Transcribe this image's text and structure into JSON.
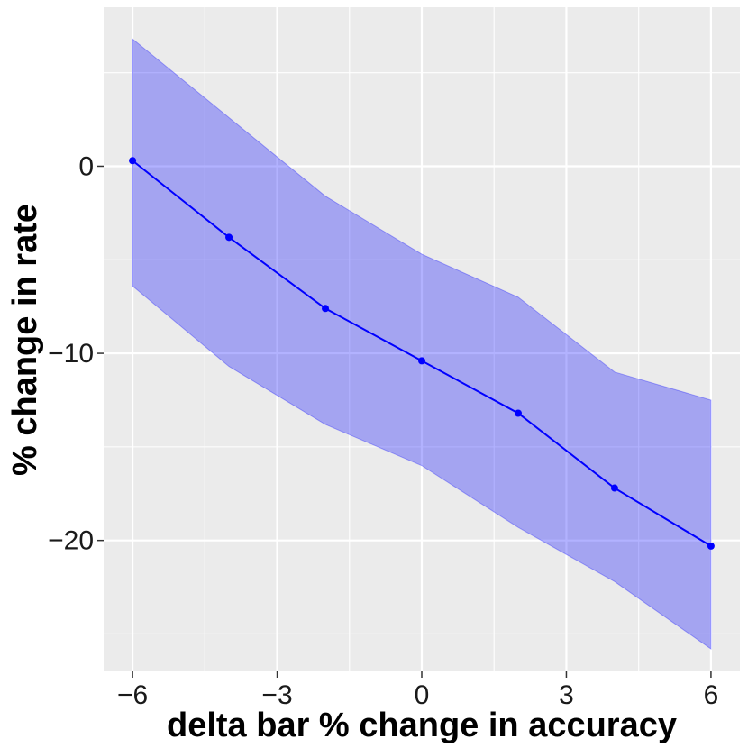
{
  "chart_data": {
    "type": "line",
    "title": "",
    "xlabel": "delta bar % change in accuracy",
    "ylabel": "% change in rate",
    "xlim": [
      -6.6,
      6.6
    ],
    "ylim": [
      -27.0,
      8.5
    ],
    "x_ticks": [
      -6,
      -3,
      0,
      3,
      6
    ],
    "x_tick_labels": [
      "−6",
      "−3",
      "0",
      "3",
      "6"
    ],
    "y_ticks": [
      0,
      -10,
      -20
    ],
    "y_tick_labels": [
      "0",
      "−10",
      "−20"
    ],
    "x_minor_ticks": [
      -4.5,
      -1.5,
      1.5,
      4.5
    ],
    "y_minor_ticks": [
      5,
      -5,
      -15,
      -25
    ],
    "grid": true,
    "legend": "none",
    "series": [
      {
        "x": [
          -6,
          -4,
          -2,
          0,
          2,
          4,
          6
        ],
        "y": [
          0.3,
          -3.8,
          -7.6,
          -10.4,
          -13.2,
          -17.2,
          -20.3
        ],
        "upper": [
          6.8,
          2.6,
          -1.6,
          -4.7,
          -7.0,
          -11.0,
          -12.5
        ],
        "lower": [
          -6.4,
          -10.7,
          -13.8,
          -16.0,
          -19.3,
          -22.2,
          -25.8
        ],
        "color": "#0000ff",
        "ribbon_color": "#0000ff",
        "ribbon_opacity": 0.3
      }
    ],
    "panel_background": "#ebebeb",
    "grid_color": "#ffffff"
  }
}
